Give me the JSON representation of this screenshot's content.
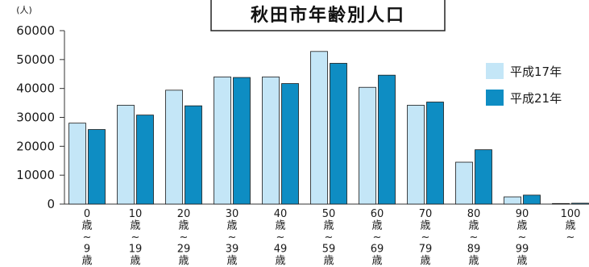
{
  "chart_data": {
    "type": "bar",
    "title": "秋田市年齢別人口",
    "unit_label": "(人)",
    "ylim": [
      0,
      60000
    ],
    "yticks": [
      0,
      10000,
      20000,
      30000,
      40000,
      50000,
      60000
    ],
    "grid": false,
    "legend_position": "right",
    "categories": [
      [
        "0",
        "歳",
        "~",
        "9",
        "歳"
      ],
      [
        "10",
        "歳",
        "~",
        "19",
        "歳"
      ],
      [
        "20",
        "歳",
        "~",
        "29",
        "歳"
      ],
      [
        "30",
        "歳",
        "~",
        "39",
        "歳"
      ],
      [
        "40",
        "歳",
        "~",
        "49",
        "歳"
      ],
      [
        "50",
        "歳",
        "~",
        "59",
        "歳"
      ],
      [
        "60",
        "歳",
        "~",
        "69",
        "歳"
      ],
      [
        "70",
        "歳",
        "~",
        "79",
        "歳"
      ],
      [
        "80",
        "歳",
        "~",
        "89",
        "歳"
      ],
      [
        "90",
        "歳",
        "~",
        "99",
        "歳"
      ],
      [
        "100",
        "歳",
        "~"
      ]
    ],
    "series": [
      {
        "name": "平成17年",
        "color": "#c4e6f7",
        "values": [
          28000,
          34200,
          39400,
          44000,
          44000,
          52800,
          40400,
          34200,
          14500,
          2500,
          200
        ]
      },
      {
        "name": "平成21年",
        "color": "#0e8dc3",
        "values": [
          25800,
          30800,
          34000,
          43800,
          41700,
          48700,
          44600,
          35300,
          18800,
          3100,
          300
        ]
      }
    ]
  }
}
